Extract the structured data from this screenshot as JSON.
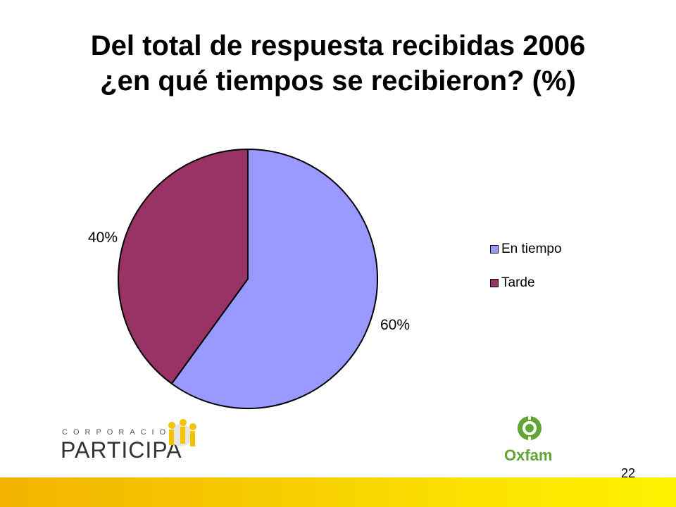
{
  "slide": {
    "title_line1": "Del total de respuesta recibidas 2006",
    "title_line2": "¿en qué tiempos se recibieron? (%)",
    "page_number": "22",
    "logo_left_small": "CORPORACION",
    "logo_left_big": "PARTICIPA",
    "logo_right_word": "Oxfam"
  },
  "chart_data": {
    "type": "pie",
    "categories": [
      "En tiempo",
      "Tarde"
    ],
    "values": [
      60,
      40
    ],
    "labels": [
      "60%",
      "40%"
    ],
    "colors": [
      "#9999ff",
      "#993366"
    ],
    "legend_position": "right"
  }
}
